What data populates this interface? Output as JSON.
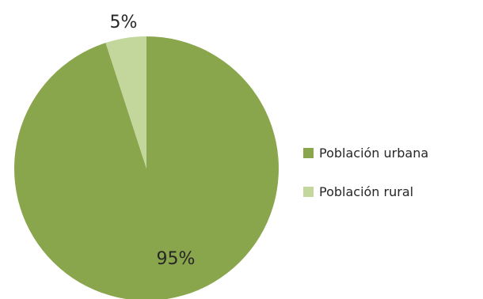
{
  "chart_data": {
    "type": "pie",
    "categories": [
      "Población urbana",
      "Población rural"
    ],
    "values": [
      95,
      5
    ],
    "data_labels": [
      "95%",
      "5%"
    ],
    "colors": [
      "#8aa64d",
      "#c3d69b"
    ],
    "start_angle_deg": 0,
    "direction": "clockwise",
    "legend_position": "right",
    "title": ""
  }
}
